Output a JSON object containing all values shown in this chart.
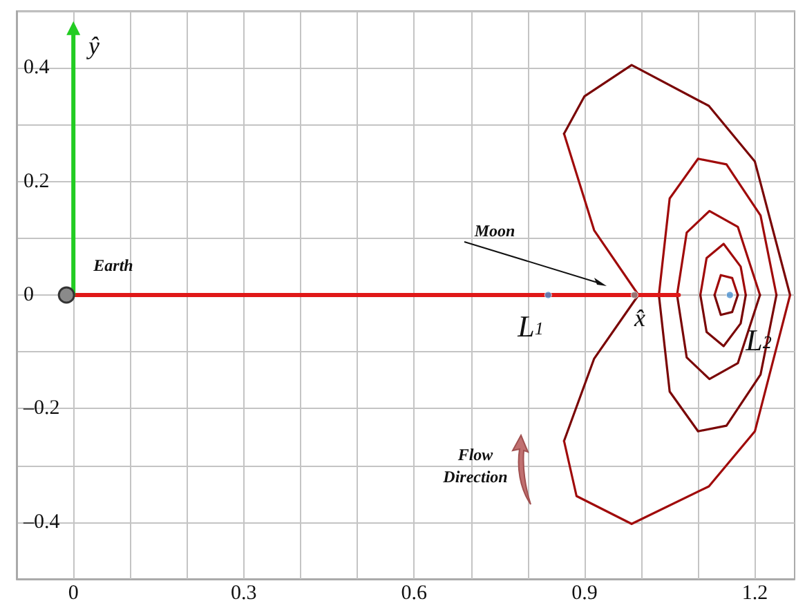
{
  "chart_data": {
    "type": "line",
    "xlim": [
      -0.1,
      1.27
    ],
    "ylim": [
      -0.5,
      0.5
    ],
    "xticks": [
      {
        "value": -0.1,
        "label": null
      },
      0,
      {
        "value": 0.1,
        "label": null
      },
      {
        "value": 0.2,
        "label": null
      },
      0.3,
      {
        "value": 0.4,
        "label": null
      },
      {
        "value": 0.5,
        "label": null
      },
      0.6,
      {
        "value": 0.7,
        "label": null
      },
      {
        "value": 0.8,
        "label": null
      },
      0.9,
      {
        "value": 1.0,
        "label": null
      },
      {
        "value": 1.1,
        "label": null
      },
      1.2
    ],
    "yticks": [
      {
        "value": -0.5,
        "label": null
      },
      {
        "value": -0.4,
        "label": "–0.4"
      },
      {
        "value": -0.3,
        "label": null
      },
      {
        "value": -0.2,
        "label": "–0.2"
      },
      {
        "value": -0.1,
        "label": null
      },
      0,
      {
        "value": 0.1,
        "label": null
      },
      0.2,
      {
        "value": 0.3,
        "label": null
      },
      0.4,
      {
        "value": 0.5,
        "label": null
      }
    ],
    "grid": true,
    "series": [
      {
        "color": "#e01818",
        "x": [
          0,
          1.066
        ],
        "values": [
          0,
          0
        ]
      },
      {
        "color": "#22cc22",
        "x": [
          0,
          0
        ],
        "values": [
          0,
          0.47
        ]
      },
      {
        "color": "#a00a0a",
        "x": [
          0.864,
          0.917,
          0.995
        ],
        "values": [
          0.284,
          0.114,
          0
        ]
      },
      {
        "color": "#7a0606",
        "x": [
          0.864,
          0.9,
          0.983,
          1.119,
          1.2,
          1.262
        ],
        "values": [
          0.284,
          0.35,
          0.405,
          0.333,
          0.235,
          0
        ]
      },
      {
        "color": "#7a0606",
        "x": [
          0.864,
          0.917,
          0.995
        ],
        "values": [
          -0.257,
          -0.112,
          0
        ]
      },
      {
        "color": "#a00a0a",
        "x": [
          0.864,
          0.886,
          0.983,
          1.119,
          1.2,
          1.262
        ],
        "values": [
          -0.257,
          -0.354,
          -0.403,
          -0.337,
          -0.24,
          0
        ]
      },
      {
        "color": "#a00a0a",
        "x": [
          1.031,
          1.05,
          1.1,
          1.15,
          1.21,
          1.238
        ],
        "values": [
          0,
          0.17,
          0.24,
          0.23,
          0.14,
          0
        ]
      },
      {
        "color": "#7a0606",
        "x": [
          1.031,
          1.05,
          1.1,
          1.15,
          1.21,
          1.238
        ],
        "values": [
          0,
          -0.17,
          -0.24,
          -0.23,
          -0.14,
          0
        ]
      },
      {
        "color": "#a00a0a",
        "x": [
          1.063,
          1.08,
          1.12,
          1.17,
          1.209
        ],
        "values": [
          0,
          0.11,
          0.148,
          0.12,
          0
        ]
      },
      {
        "color": "#7a0606",
        "x": [
          1.063,
          1.08,
          1.12,
          1.17,
          1.209
        ],
        "values": [
          0,
          -0.11,
          -0.148,
          -0.12,
          0
        ]
      },
      {
        "color": "#a00a0a",
        "x": [
          1.104,
          1.115,
          1.145,
          1.175,
          1.184
        ],
        "values": [
          0,
          0.065,
          0.09,
          0.05,
          0
        ]
      },
      {
        "color": "#7a0606",
        "x": [
          1.104,
          1.115,
          1.145,
          1.175,
          1.184
        ],
        "values": [
          0,
          -0.065,
          -0.09,
          -0.05,
          0
        ]
      },
      {
        "color": "#a00a0a",
        "x": [
          1.129,
          1.14,
          1.16,
          1.17
        ],
        "values": [
          0,
          0.035,
          0.03,
          0
        ]
      },
      {
        "color": "#7a0606",
        "x": [
          1.129,
          1.14,
          1.16,
          1.17
        ],
        "values": [
          0,
          -0.035,
          -0.03,
          0
        ]
      },
      {
        "type": "scatter",
        "x": [
          0.836,
          0.988,
          1.156
        ],
        "values": [
          0,
          0,
          0
        ],
        "colors": [
          "#4a90d0",
          "#888888",
          "#4a90d0"
        ]
      }
    ],
    "annotations": [
      "ŷ",
      "Earth",
      "Moon",
      "L$_{1}$",
      "x̂",
      "L$_{2}$",
      "Flow Direction"
    ]
  }
}
